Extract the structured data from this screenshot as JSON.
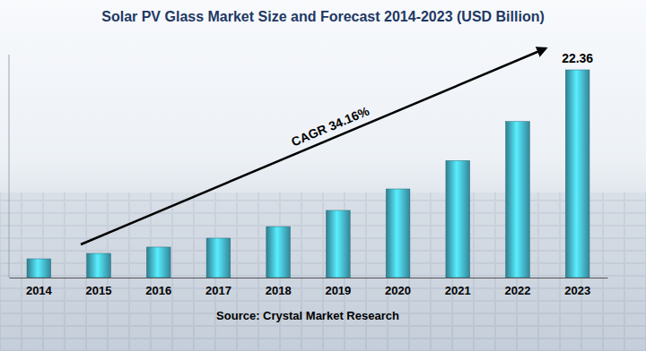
{
  "chart_data": {
    "type": "bar",
    "title": "Solar PV Glass Market Size and Forecast 2014-2023 (USD Billion)",
    "categories": [
      "2014",
      "2015",
      "2016",
      "2017",
      "2018",
      "2019",
      "2020",
      "2021",
      "2022",
      "2023"
    ],
    "values": [
      2.02,
      2.6,
      3.28,
      4.24,
      5.49,
      7.23,
      9.54,
      12.6,
      16.8,
      22.36
    ],
    "value_labels": [
      null,
      null,
      null,
      null,
      null,
      null,
      null,
      null,
      null,
      "22.36"
    ],
    "annotations": [
      "CAGR 34.16%"
    ],
    "source": "Source: Crystal Market Research",
    "color": "#3a9bb0",
    "ylim": [
      0,
      24
    ],
    "tick_labels": "x",
    "grid": false
  }
}
